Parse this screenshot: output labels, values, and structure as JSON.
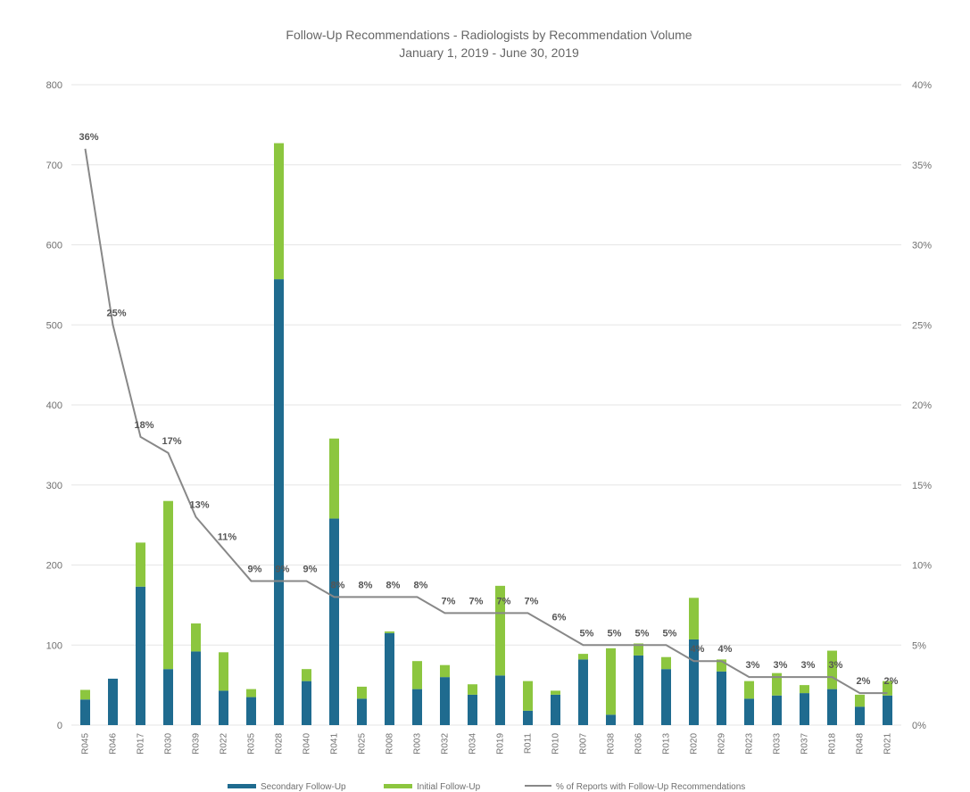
{
  "chart_data": {
    "type": "bar",
    "stacked": true,
    "title": "Follow-Up Recommendations - Radiologists by Recommendation Volume",
    "subtitle": "January 1, 2019 - June 30, 2019",
    "categories": [
      "R045",
      "R046",
      "R017",
      "R030",
      "R039",
      "R022",
      "R035",
      "R028",
      "R040",
      "R041",
      "R025",
      "R008",
      "R003",
      "R032",
      "R034",
      "R019",
      "R011",
      "R010",
      "R007",
      "R038",
      "R036",
      "R013",
      "R020",
      "R029",
      "R023",
      "R033",
      "R037",
      "R018",
      "R048",
      "R021"
    ],
    "series": [
      {
        "name": "Secondary Follow-Up",
        "axis": "left",
        "color": "#1f6b8f",
        "values": [
          32,
          58,
          173,
          70,
          92,
          43,
          35,
          557,
          55,
          258,
          33,
          115,
          45,
          60,
          38,
          62,
          18,
          38,
          82,
          13,
          87,
          70,
          107,
          67,
          33,
          37,
          40,
          45,
          23,
          37
        ]
      },
      {
        "name": "Initial Follow-Up",
        "axis": "left",
        "color": "#8cc63f",
        "values": [
          12,
          0,
          55,
          210,
          35,
          48,
          10,
          170,
          15,
          100,
          15,
          2,
          35,
          15,
          13,
          112,
          37,
          5,
          7,
          83,
          15,
          15,
          52,
          15,
          22,
          28,
          10,
          48,
          15,
          18
        ]
      },
      {
        "name": "% of Reports with Follow-Up Recommendations",
        "axis": "right",
        "type": "line",
        "color": "#888888",
        "values": [
          36,
          25,
          18,
          17,
          13,
          11,
          9,
          9,
          9,
          8,
          8,
          8,
          8,
          7,
          7,
          7,
          7,
          6,
          5,
          5,
          5,
          5,
          4,
          4,
          3,
          3,
          3,
          3,
          2,
          2
        ]
      }
    ],
    "data_labels": [
      "36%",
      "25%",
      "18%",
      "17%",
      "13%",
      "11%",
      "9%",
      "9%",
      "9%",
      "8%",
      "8%",
      "8%",
      "8%",
      "7%",
      "7%",
      "7%",
      "7%",
      "6%",
      "5%",
      "5%",
      "5%",
      "5%",
      "4%",
      "4%",
      "3%",
      "3%",
      "3%",
      "3%",
      "2%",
      "2%"
    ],
    "y_left": {
      "min": 0,
      "max": 800,
      "ticks": [
        "0",
        "100",
        "200",
        "300",
        "400",
        "500",
        "600",
        "700",
        "800"
      ]
    },
    "y_right": {
      "min": 0,
      "max": 40,
      "ticks": [
        "0%",
        "5%",
        "10%",
        "15%",
        "20%",
        "25%",
        "30%",
        "35%",
        "40%"
      ]
    },
    "grid": true,
    "legend_position": "bottom",
    "legend": [
      "Secondary Follow-Up",
      "Initial Follow-Up",
      "% of Reports with Follow-Up Recommendations"
    ]
  }
}
